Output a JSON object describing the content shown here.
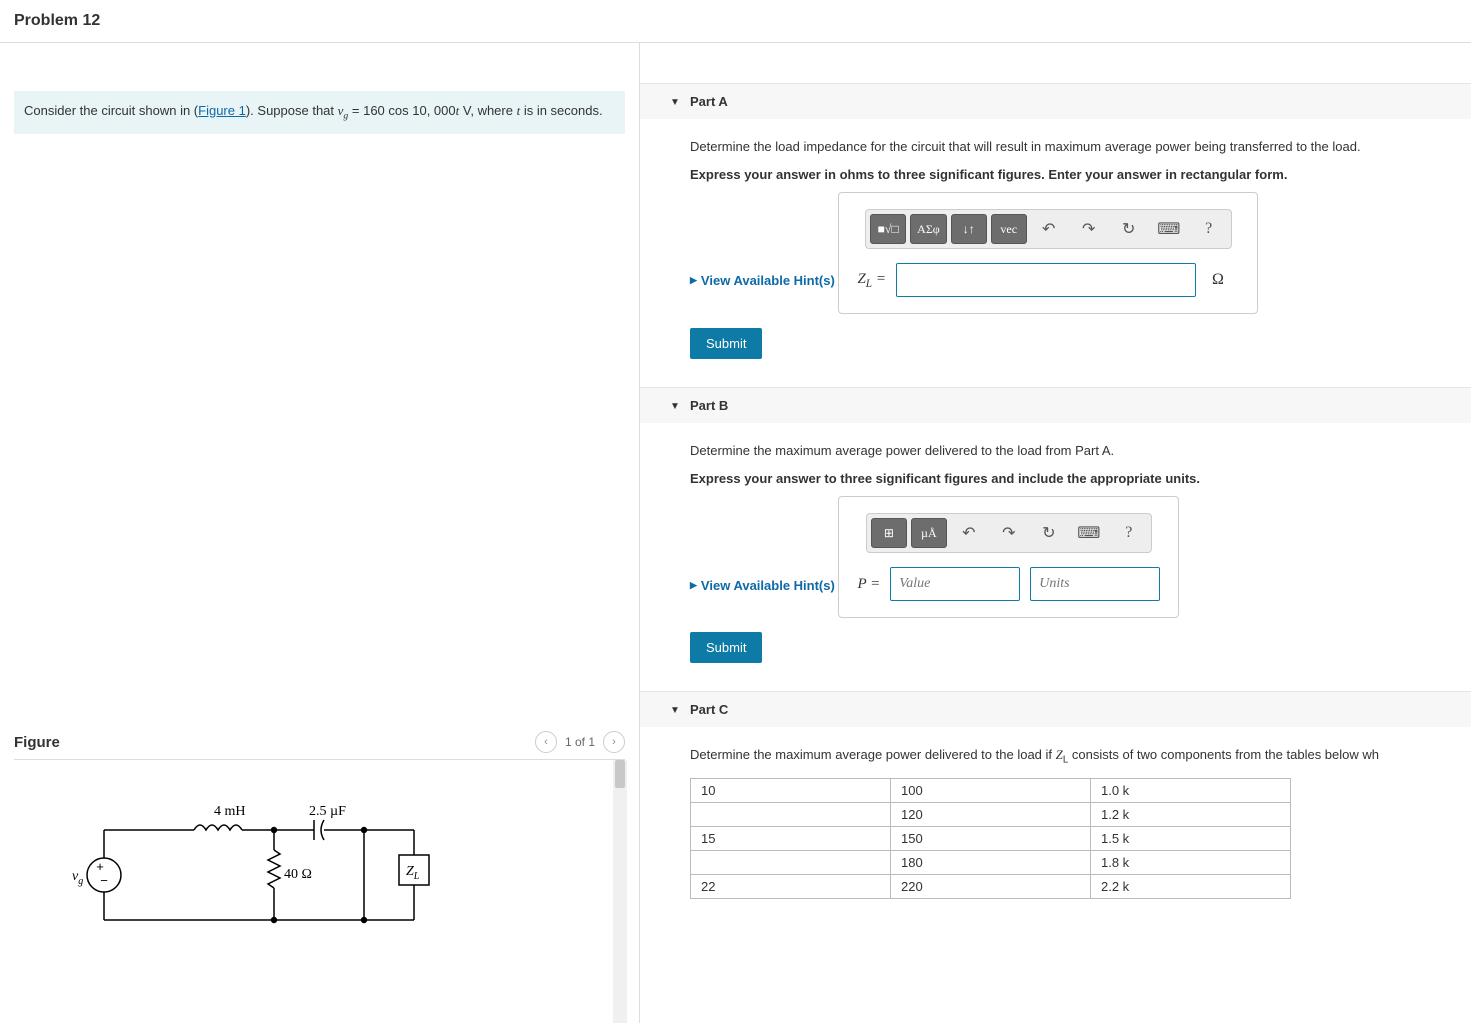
{
  "header": {
    "title": "Problem 12"
  },
  "problem": {
    "prefix": "Consider the circuit shown in (",
    "link_text": "Figure 1",
    "mid": "). Suppose that ",
    "equation_html": "<span class='math'>v<span class='sub'>g</span></span> = 160 cos 10, 000<span class='math'>t</span> V",
    "suffix": ", where ",
    "t_var": "t",
    "suffix2": " is in seconds."
  },
  "figure": {
    "title": "Figure",
    "pager": "1 of 1",
    "labels": {
      "inductor": "4 mH",
      "capacitor": "2.5 µF",
      "resistor": "40 Ω",
      "source": "v",
      "source_sub": "g",
      "load": "Z",
      "load_sub": "L"
    }
  },
  "partA": {
    "title": "Part A",
    "q": "Determine the load impedance for the circuit that will result in maximum average power being transferred to the load.",
    "instr": "Express your answer in ohms to three significant figures. Enter your answer in rectangular form.",
    "hints": "View Available Hint(s)",
    "label_html": "<i>Z</i><span class='sub'>L</span> =",
    "unit": "Ω",
    "submit": "Submit",
    "tools": [
      "■√□",
      "ΑΣφ",
      "↓↑",
      "vec",
      "↶",
      "↷",
      "↻",
      "⌨",
      "?"
    ]
  },
  "partB": {
    "title": "Part B",
    "q": "Determine the maximum average power delivered to the load from Part A.",
    "instr": "Express your answer to three significant figures and include the appropriate units.",
    "hints": "View Available Hint(s)",
    "label_html": "<i>P</i> =",
    "value_ph": "Value",
    "units_ph": "Units",
    "submit": "Submit",
    "tools": [
      "⊞",
      "µÅ",
      "↶",
      "↷",
      "↻",
      "⌨",
      "?"
    ]
  },
  "partC": {
    "title": "Part C",
    "q_html": "Determine the maximum average power delivered to the load if <span class='math'>Z</span><span class='sub'>L</span> consists of two components from the tables below wh",
    "table": {
      "rows": [
        [
          "10",
          "100",
          "1.0 k"
        ],
        [
          "",
          "120",
          "1.2 k"
        ],
        [
          "15",
          "150",
          "1.5 k"
        ],
        [
          "",
          "180",
          "1.8 k"
        ],
        [
          "22",
          "220",
          "2.2 k"
        ]
      ]
    }
  }
}
